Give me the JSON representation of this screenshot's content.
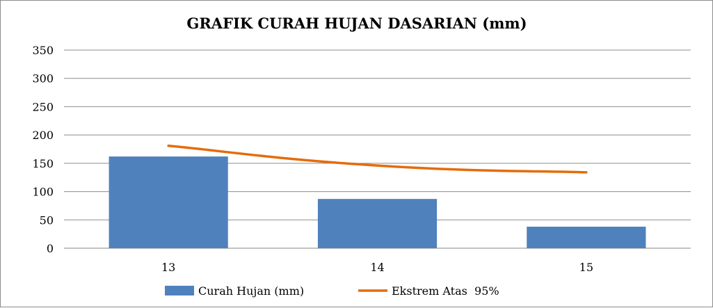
{
  "chart_data": {
    "type": "bar",
    "title": "GRAFIK CURAH HUJAN DASARIAN (mm)",
    "xlabel": "",
    "ylabel": "",
    "categories": [
      "13",
      "14",
      "15"
    ],
    "ylim": [
      0,
      350
    ],
    "yticks": [
      0,
      50,
      100,
      150,
      200,
      250,
      300,
      350
    ],
    "grid": true,
    "legend_position": "bottom",
    "series": [
      {
        "name": "Curah Hujan (mm)",
        "type": "bar",
        "color": "#4f81bd",
        "values": [
          162,
          87,
          38
        ]
      },
      {
        "name": "Ekstrem Atas  95%",
        "type": "line",
        "color": "#e46c0a",
        "values": [
          181,
          146,
          134
        ]
      }
    ]
  }
}
